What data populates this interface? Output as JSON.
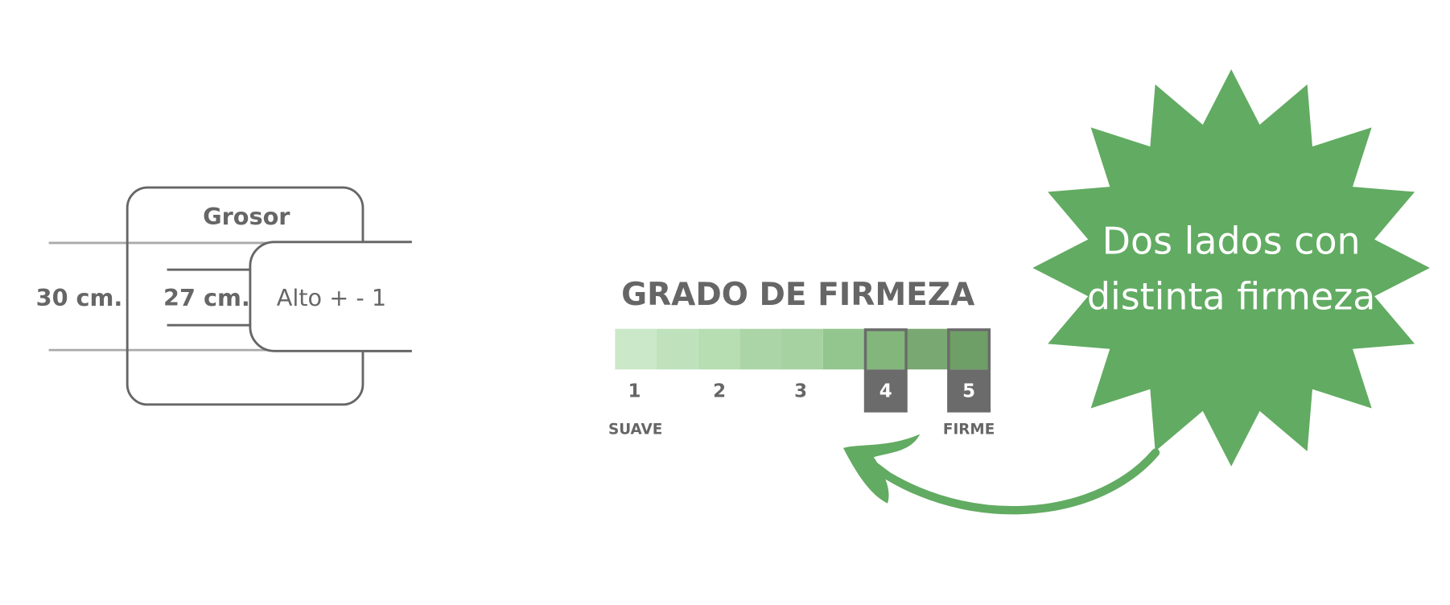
{
  "grosor": {
    "title": "Grosor",
    "total_height": "30 cm.",
    "core_height": "27 cm.",
    "tolerance": "Alto + - 1"
  },
  "firmness": {
    "title": "GRADO DE FIRMEZA",
    "scale_labels": [
      "1",
      "2",
      "3",
      "4",
      "5"
    ],
    "highlighted": [
      "4",
      "5"
    ],
    "soft_label": "SUAVE",
    "firm_label": "FIRME",
    "segment_colors": [
      "#cbe8c9",
      "#bfe2bc",
      "#b6deb2",
      "#abd5a6",
      "#a6d2a1",
      "#93c68e",
      "#82b67b",
      "#7aa872",
      "#6e9f66"
    ],
    "outline_color": "#6b6b6b"
  },
  "badge": {
    "line1": "Dos lados con",
    "line2": "distinta firmeza",
    "color": "#62ab62"
  }
}
